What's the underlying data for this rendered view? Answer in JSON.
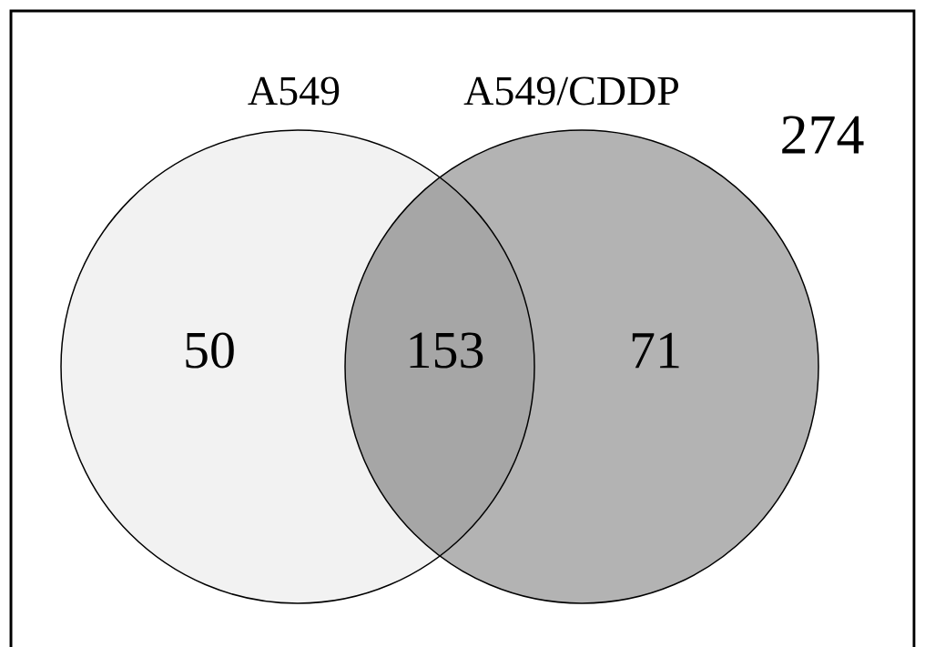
{
  "chart_data": {
    "type": "other",
    "categories": [
      null,
      null,
      null
    ],
    "values": [
      50,
      153,
      71
    ],
    "colors": [
      "#f2f2f2",
      "#a6a6a6",
      "#b3b3b3"
    ],
    "data_labels": true,
    "annotations": [
      "A549",
      "A549/CDDP",
      "274"
    ]
  }
}
